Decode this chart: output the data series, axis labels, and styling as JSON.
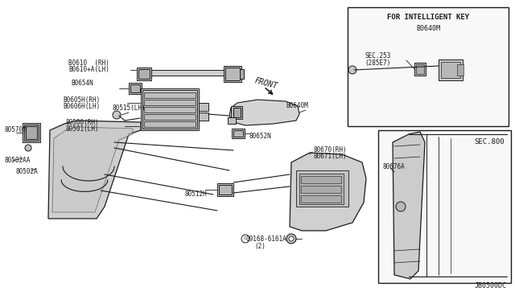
{
  "bg_color": "#ffffff",
  "line_color": "#1a1a1a",
  "fig_width": 6.4,
  "fig_height": 3.72,
  "dpi": 100,
  "diagram_id": "JB0500DC",
  "inset1_title": "FOR INTELLIGENT KEY",
  "inset1_part": "B0640M",
  "inset1_sec": "SEC.253",
  "inset1_sec2": "(285E7)",
  "inset2_sec": "SEC.800",
  "front_label": "FRONT"
}
